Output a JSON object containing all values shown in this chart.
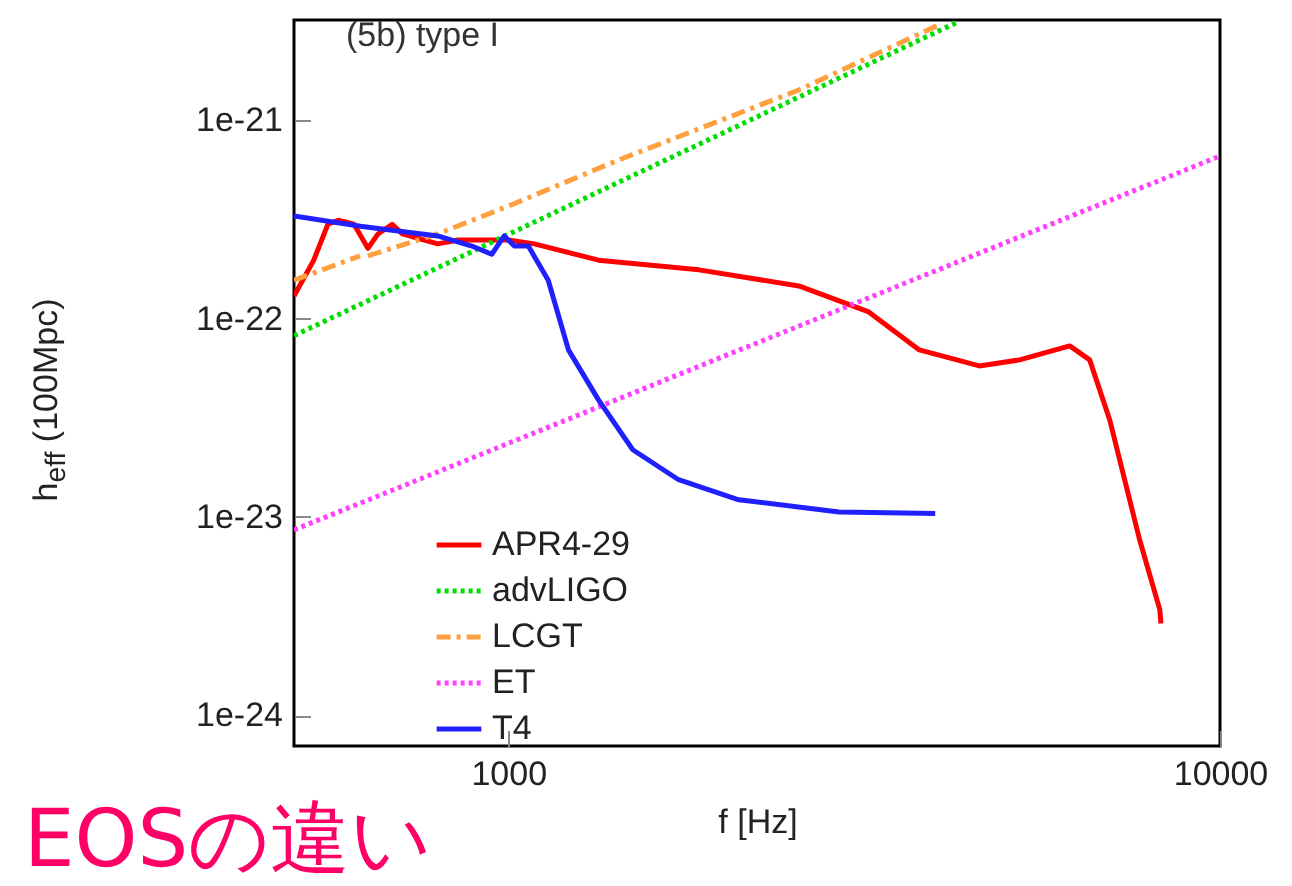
{
  "chart_data": {
    "type": "line",
    "xlabel": "f [Hz]",
    "ylabel": "h$_{eff}$ (100Mpc)",
    "annotations": [
      "(5b) type I",
      "EOSの違い"
    ],
    "log": "xy",
    "grid": false,
    "legend": "bottom",
    "marker": "none",
    "xlim": [
      500,
      10000
    ],
    "xticks": [
      1000,
      10000
    ],
    "ylim": [
      7e-25,
      3.2e-21
    ],
    "yticks": [
      {
        "value": 1e-24,
        "label": "1e-24"
      },
      {
        "value": 1e-23,
        "label": "1e-23"
      },
      {
        "value": 1e-22,
        "label": "1e-22"
      },
      {
        "value": 1e-21,
        "label": "1e-21"
      }
    ],
    "series": [
      {
        "name": "APR4-29",
        "color": "#ff0000",
        "line_style": "solid",
        "x": [
          500,
          533,
          558,
          577,
          607,
          635,
          656,
          687,
          710,
          796,
          850,
          937,
          1000,
          1088,
          1339,
          1853,
          2560,
          3210,
          3780,
          4590,
          5230,
          6150,
          6560,
          7000,
          7710,
          8230,
          8260
        ],
        "values": [
          1.3e-22,
          1.97e-22,
          2.99e-22,
          3.13e-22,
          2.99e-22,
          2.26e-22,
          2.67e-22,
          2.99e-22,
          2.67e-22,
          2.38e-22,
          2.49e-22,
          2.49e-22,
          2.49e-22,
          2.38e-22,
          1.97e-22,
          1.76e-22,
          1.46e-22,
          1.08e-22,
          6.95e-23,
          5.77e-23,
          6.19e-23,
          7.28e-23,
          6.19e-23,
          3.08e-23,
          7.67e-24,
          3.41e-24,
          2.9e-24
        ]
      },
      {
        "name": "advLIGO",
        "color": "#00dd00",
        "line_style": "dotted",
        "x": [
          500,
          4300
        ],
        "values": [
          8.2e-23,
          3.15e-21
        ]
      },
      {
        "name": "LCGT",
        "color": "#ffa040",
        "line_style": "dashed",
        "x": [
          500,
          619,
          625,
          630,
          635,
          796,
          1000,
          1429,
          2560,
          4040
        ],
        "values": [
          1.56e-22,
          2.07e-22,
          null,
          null,
          2.07e-22,
          2.67e-22,
          3.69e-22,
          6.3e-22,
          1.42e-21,
          3.04e-21
        ]
      },
      {
        "name": "ET",
        "color": "#ff40ff",
        "line_style": "dotted",
        "x": [
          500,
          10000
        ],
        "values": [
          8.6e-24,
          6.6e-22
        ]
      },
      {
        "name": "T4",
        "color": "#2020ff",
        "line_style": "solid",
        "x": [
          500,
          620,
          796,
          889,
          948,
          987,
          1020,
          1067,
          1138,
          1215,
          1339,
          1496,
          1735,
          2108,
          2915,
          3980
        ],
        "values": [
          3.29e-22,
          2.92e-22,
          2.61e-22,
          2.32e-22,
          2.11e-22,
          2.61e-22,
          2.32e-22,
          2.32e-22,
          1.56e-22,
          6.95e-23,
          3.89e-23,
          2.18e-23,
          1.54e-23,
          1.22e-23,
          1.06e-23,
          1.04e-23
        ]
      }
    ]
  }
}
